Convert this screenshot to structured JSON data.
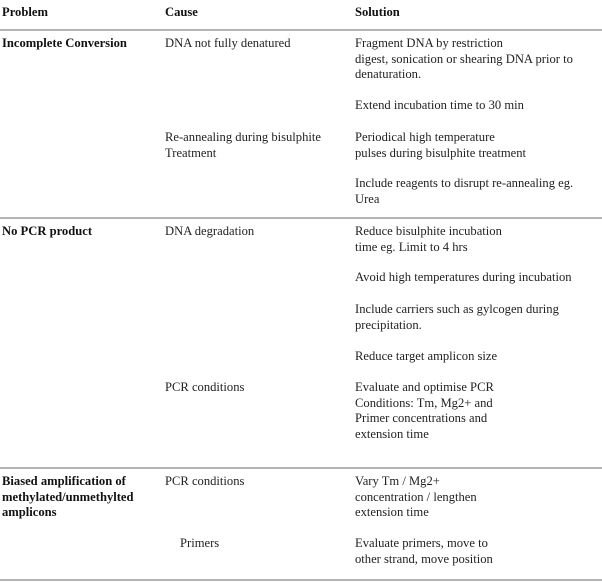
{
  "headers": {
    "problem": "Problem",
    "cause": "Cause",
    "solution": "Solution"
  },
  "rows": [
    {
      "problem": "Incomplete Conversion",
      "causes": [
        {
          "cause": [
            "DNA not fully denatured"
          ],
          "solutions": [
            [
              "Fragment  DNA by restriction",
              "digest, sonication or shearing DNA prior to",
              "denaturation."
            ],
            [
              "Extend incubation time to 30 min"
            ]
          ]
        },
        {
          "cause": [
            "Re-annealing  during bisulphite",
            "Treatment"
          ],
          "solutions": [
            [
              "Periodical high temperature",
              "pulses during bisulphite treatment"
            ],
            [
              "Include reagents  to disrupt re-annealing  eg.",
              "Urea"
            ]
          ]
        }
      ]
    },
    {
      "problem": "No PCR product",
      "causes": [
        {
          "cause": [
            "DNA degradation"
          ],
          "solutions": [
            [
              "Reduce bisulphite incubation",
              "time eg. Limit to 4 hrs"
            ],
            [
              "Avoid high temperatures  during incubation"
            ],
            [
              "Include carriers  such as gylcogen during",
              "precipitation."
            ],
            [
              "Reduce target  amplicon size"
            ]
          ]
        },
        {
          "cause": [
            "PCR conditions"
          ],
          "solutions": [
            [
              "Evaluate and optimise PCR",
              "Conditions: Tm, Mg2+ and",
              "Primer concentrations  and",
              "extension time"
            ]
          ]
        }
      ]
    },
    {
      "problem": [
        "Biased amplification  of",
        "methylated/unmethylted",
        "amplicons"
      ],
      "causes": [
        {
          "cause": [
            "PCR conditions"
          ],
          "solutions": [
            [
              "Vary Tm / Mg2+",
              "concentration  / lengthen",
              "extension time"
            ]
          ]
        },
        {
          "cause": [
            "Primers"
          ],
          "solutions": [
            [
              "Evaluate primers,  move to",
              "other strand,  move position"
            ]
          ]
        }
      ]
    }
  ]
}
